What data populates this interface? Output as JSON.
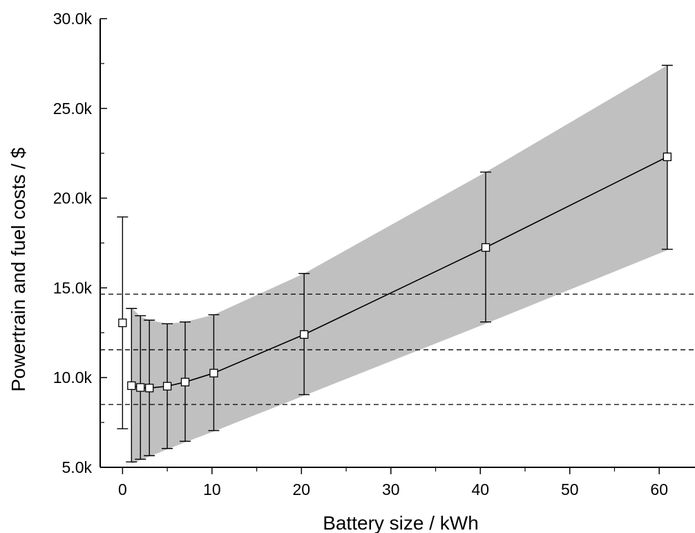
{
  "chart_data": {
    "type": "line",
    "title": "",
    "xlabel": "Battery size / kWh",
    "ylabel": "Powertrain and fuel costs / $",
    "xlim": [
      -2.5,
      64
    ],
    "ylim": [
      5000,
      30000
    ],
    "x_ticks": [
      0,
      10,
      20,
      30,
      40,
      50,
      60
    ],
    "x_tick_labels": [
      "0",
      "10",
      "20",
      "30",
      "40",
      "50",
      "60"
    ],
    "y_ticks": [
      5000,
      10000,
      15000,
      20000,
      25000,
      30000
    ],
    "y_tick_labels": [
      "5.0k",
      "10.0k",
      "15.0k",
      "20.0k",
      "25.0k",
      "30.0k"
    ],
    "grid": false,
    "legend": "none",
    "series": [
      {
        "x": [
          0,
          1,
          2,
          3,
          5,
          7,
          10.2,
          20.3,
          40.6,
          60.9
        ],
        "y": [
          13050,
          9550,
          9450,
          9420,
          9520,
          9750,
          10250,
          12400,
          17250,
          22300
        ],
        "error_low": [
          7150,
          5300,
          5450,
          5650,
          6050,
          6450,
          7050,
          9050,
          13100,
          17150
        ],
        "error_high": [
          18950,
          13850,
          13450,
          13200,
          13000,
          13100,
          13500,
          15800,
          21450,
          27400
        ],
        "marker": "open-square",
        "line_color": "#000000"
      }
    ],
    "band": {
      "x": [
        1,
        2,
        3,
        5,
        7,
        10.2,
        20.3,
        40.6,
        60.9
      ],
      "lower": [
        5200,
        5400,
        5600,
        6000,
        6400,
        7000,
        9000,
        13000,
        17100
      ],
      "upper": [
        13900,
        13400,
        13200,
        13000,
        13100,
        13500,
        15800,
        21450,
        27400
      ],
      "color": "#c0c0c0"
    },
    "reference_lines": [
      {
        "y": 14650,
        "style": "dashed"
      },
      {
        "y": 11550,
        "style": "dashed"
      },
      {
        "y": 8500,
        "style": "dashed"
      }
    ]
  }
}
